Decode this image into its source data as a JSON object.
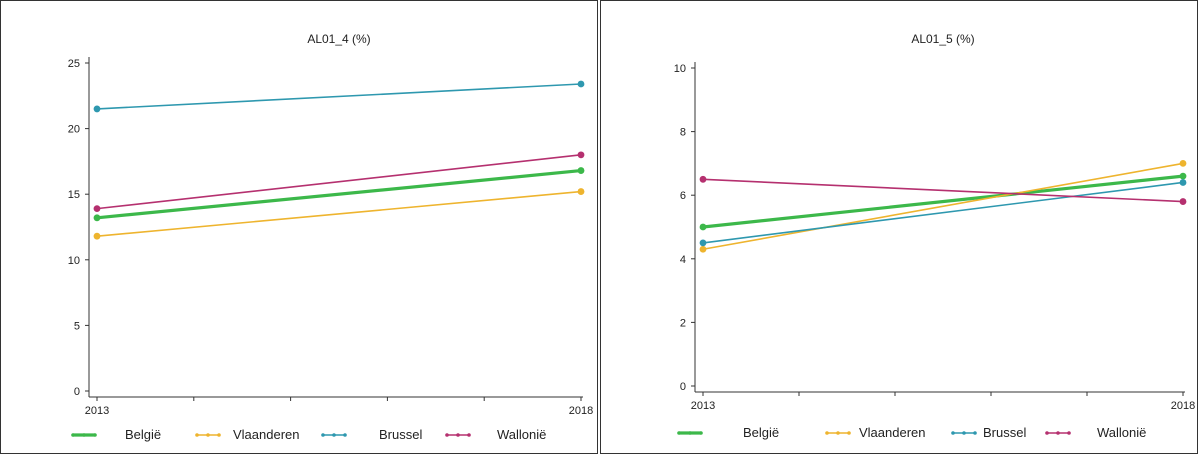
{
  "colors": {
    "belgie": "#3CB84A",
    "vlaanderen": "#EEB42E",
    "brussel": "#2E98AF",
    "wallonie": "#B5306F"
  },
  "chart_data": [
    {
      "type": "line",
      "title": "AL01_4 (%)",
      "x": [
        "2013",
        "2018"
      ],
      "ylim": [
        0,
        25
      ],
      "yticks": [
        "0",
        "5",
        "10",
        "15",
        "20",
        "25"
      ],
      "grid": false,
      "legend_position": "bottom",
      "series": [
        {
          "name": "België",
          "color": "#3CB84A",
          "values": [
            13.2,
            16.8
          ]
        },
        {
          "name": "Vlaanderen",
          "color": "#EEB42E",
          "values": [
            11.8,
            15.2
          ]
        },
        {
          "name": "Brussel",
          "color": "#2E98AF",
          "values": [
            21.5,
            23.4
          ]
        },
        {
          "name": "Wallonië",
          "color": "#B5306F",
          "values": [
            13.9,
            18.0
          ]
        }
      ]
    },
    {
      "type": "line",
      "title": "AL01_5 (%)",
      "x": [
        "2013",
        "2018"
      ],
      "ylim": [
        0,
        10
      ],
      "yticks": [
        "0",
        "2",
        "4",
        "6",
        "8",
        "10"
      ],
      "grid": false,
      "legend_position": "bottom",
      "series": [
        {
          "name": "België",
          "color": "#3CB84A",
          "values": [
            5.0,
            6.6
          ]
        },
        {
          "name": "Vlaanderen",
          "color": "#EEB42E",
          "values": [
            4.3,
            7.0
          ]
        },
        {
          "name": "Brussel",
          "color": "#2E98AF",
          "values": [
            4.5,
            6.4
          ]
        },
        {
          "name": "Wallonië",
          "color": "#B5306F",
          "values": [
            6.5,
            5.8
          ]
        }
      ]
    }
  ]
}
